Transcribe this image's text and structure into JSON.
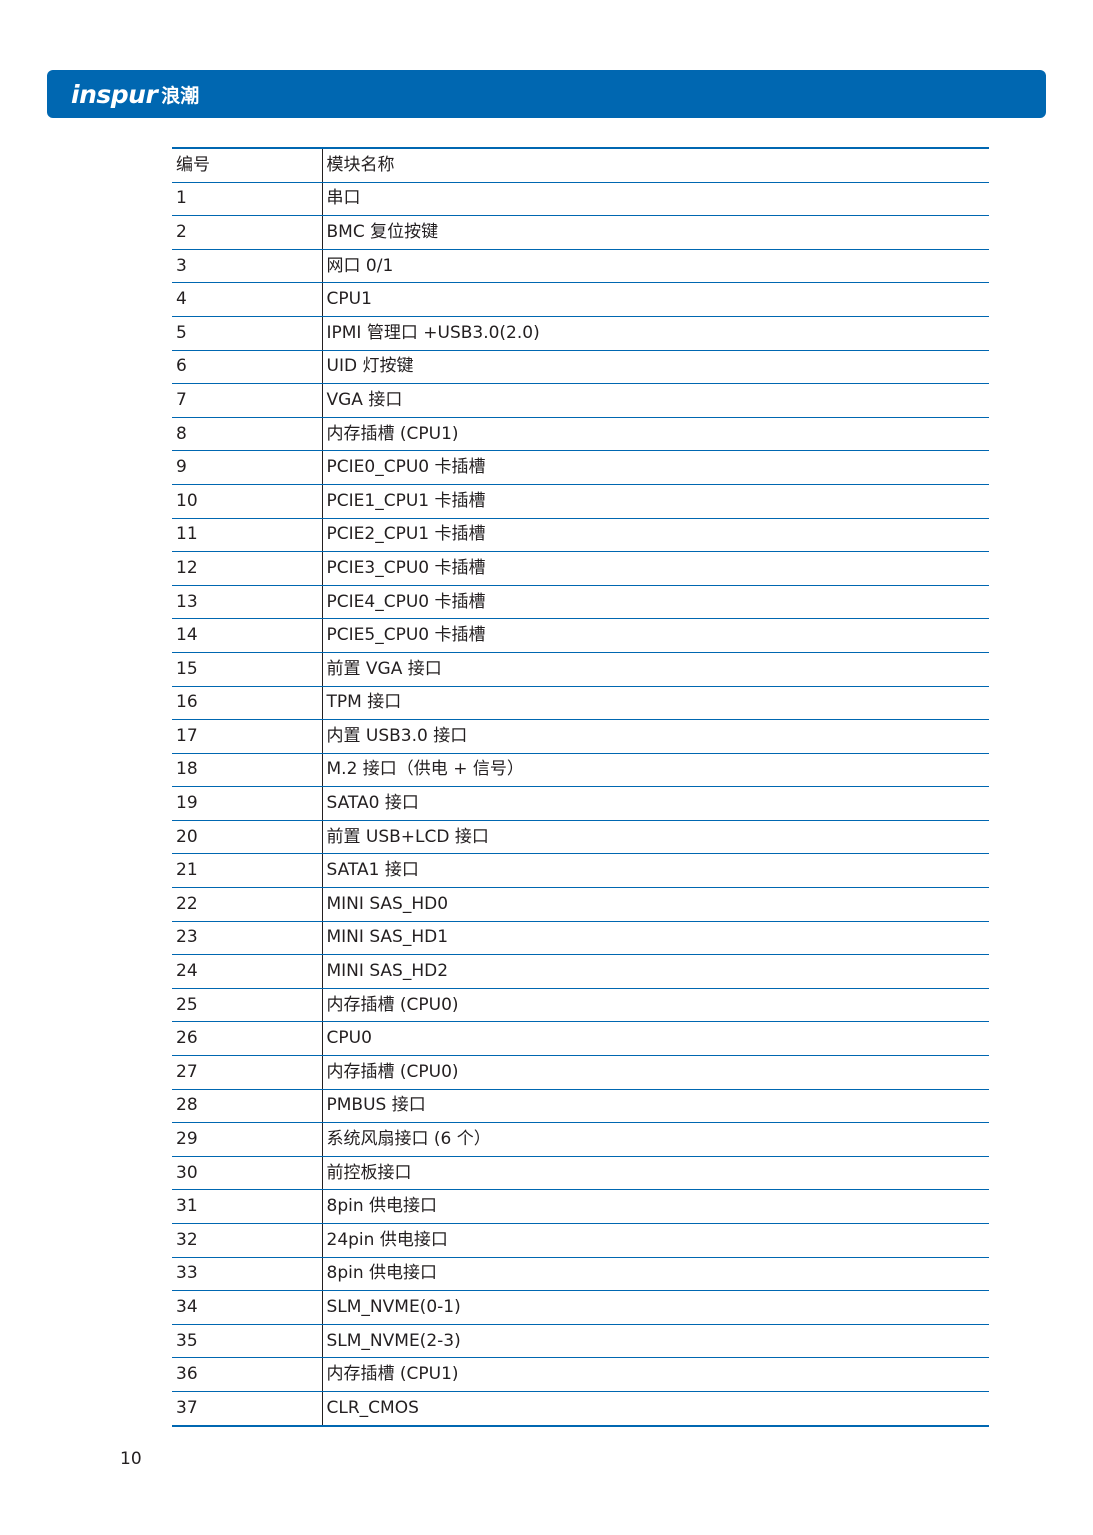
{
  "header": {
    "brand_latin": "inspur",
    "brand_cn": "浪潮",
    "bar_color": "#0067b1"
  },
  "table": {
    "columns": [
      "编号",
      "模块名称"
    ],
    "rows": [
      [
        "1",
        "串口"
      ],
      [
        "2",
        "BMC 复位按键"
      ],
      [
        "3",
        "网口 0/1"
      ],
      [
        "4",
        "CPU1"
      ],
      [
        "5",
        "IPMI 管理口 +USB3.0(2.0)"
      ],
      [
        "6",
        "UID 灯按键"
      ],
      [
        "7",
        "VGA 接口"
      ],
      [
        "8",
        "内存插槽 (CPU1)"
      ],
      [
        "9",
        "PCIE0_CPU0 卡插槽"
      ],
      [
        "10",
        "PCIE1_CPU1 卡插槽"
      ],
      [
        "11",
        "PCIE2_CPU1 卡插槽"
      ],
      [
        "12",
        "PCIE3_CPU0 卡插槽"
      ],
      [
        "13",
        "PCIE4_CPU0 卡插槽"
      ],
      [
        "14",
        "PCIE5_CPU0 卡插槽"
      ],
      [
        "15",
        "前置 VGA 接口"
      ],
      [
        "16",
        "TPM 接口"
      ],
      [
        "17",
        "内置 USB3.0 接口"
      ],
      [
        "18",
        "M.2 接口（供电 + 信号）"
      ],
      [
        "19",
        "SATA0 接口"
      ],
      [
        "20",
        "前置 USB+LCD 接口"
      ],
      [
        "21",
        "SATA1 接口"
      ],
      [
        "22",
        "MINI SAS_HD0"
      ],
      [
        "23",
        "MINI SAS_HD1"
      ],
      [
        "24",
        "MINI SAS_HD2"
      ],
      [
        "25",
        "内存插槽 (CPU0)"
      ],
      [
        "26",
        "CPU0"
      ],
      [
        "27",
        "内存插槽 (CPU0)"
      ],
      [
        "28",
        "PMBUS 接口"
      ],
      [
        "29",
        "系统风扇接口 (6 个）"
      ],
      [
        "30",
        "前控板接口"
      ],
      [
        "31",
        "8pin 供电接口"
      ],
      [
        "32",
        "24pin 供电接口"
      ],
      [
        "33",
        "8pin 供电接口"
      ],
      [
        "34",
        "SLM_NVME(0-1)"
      ],
      [
        "35",
        "SLM_NVME(2-3)"
      ],
      [
        "36",
        "内存插槽 (CPU1)"
      ],
      [
        "37",
        "CLR_CMOS"
      ]
    ]
  },
  "page_number": "10"
}
